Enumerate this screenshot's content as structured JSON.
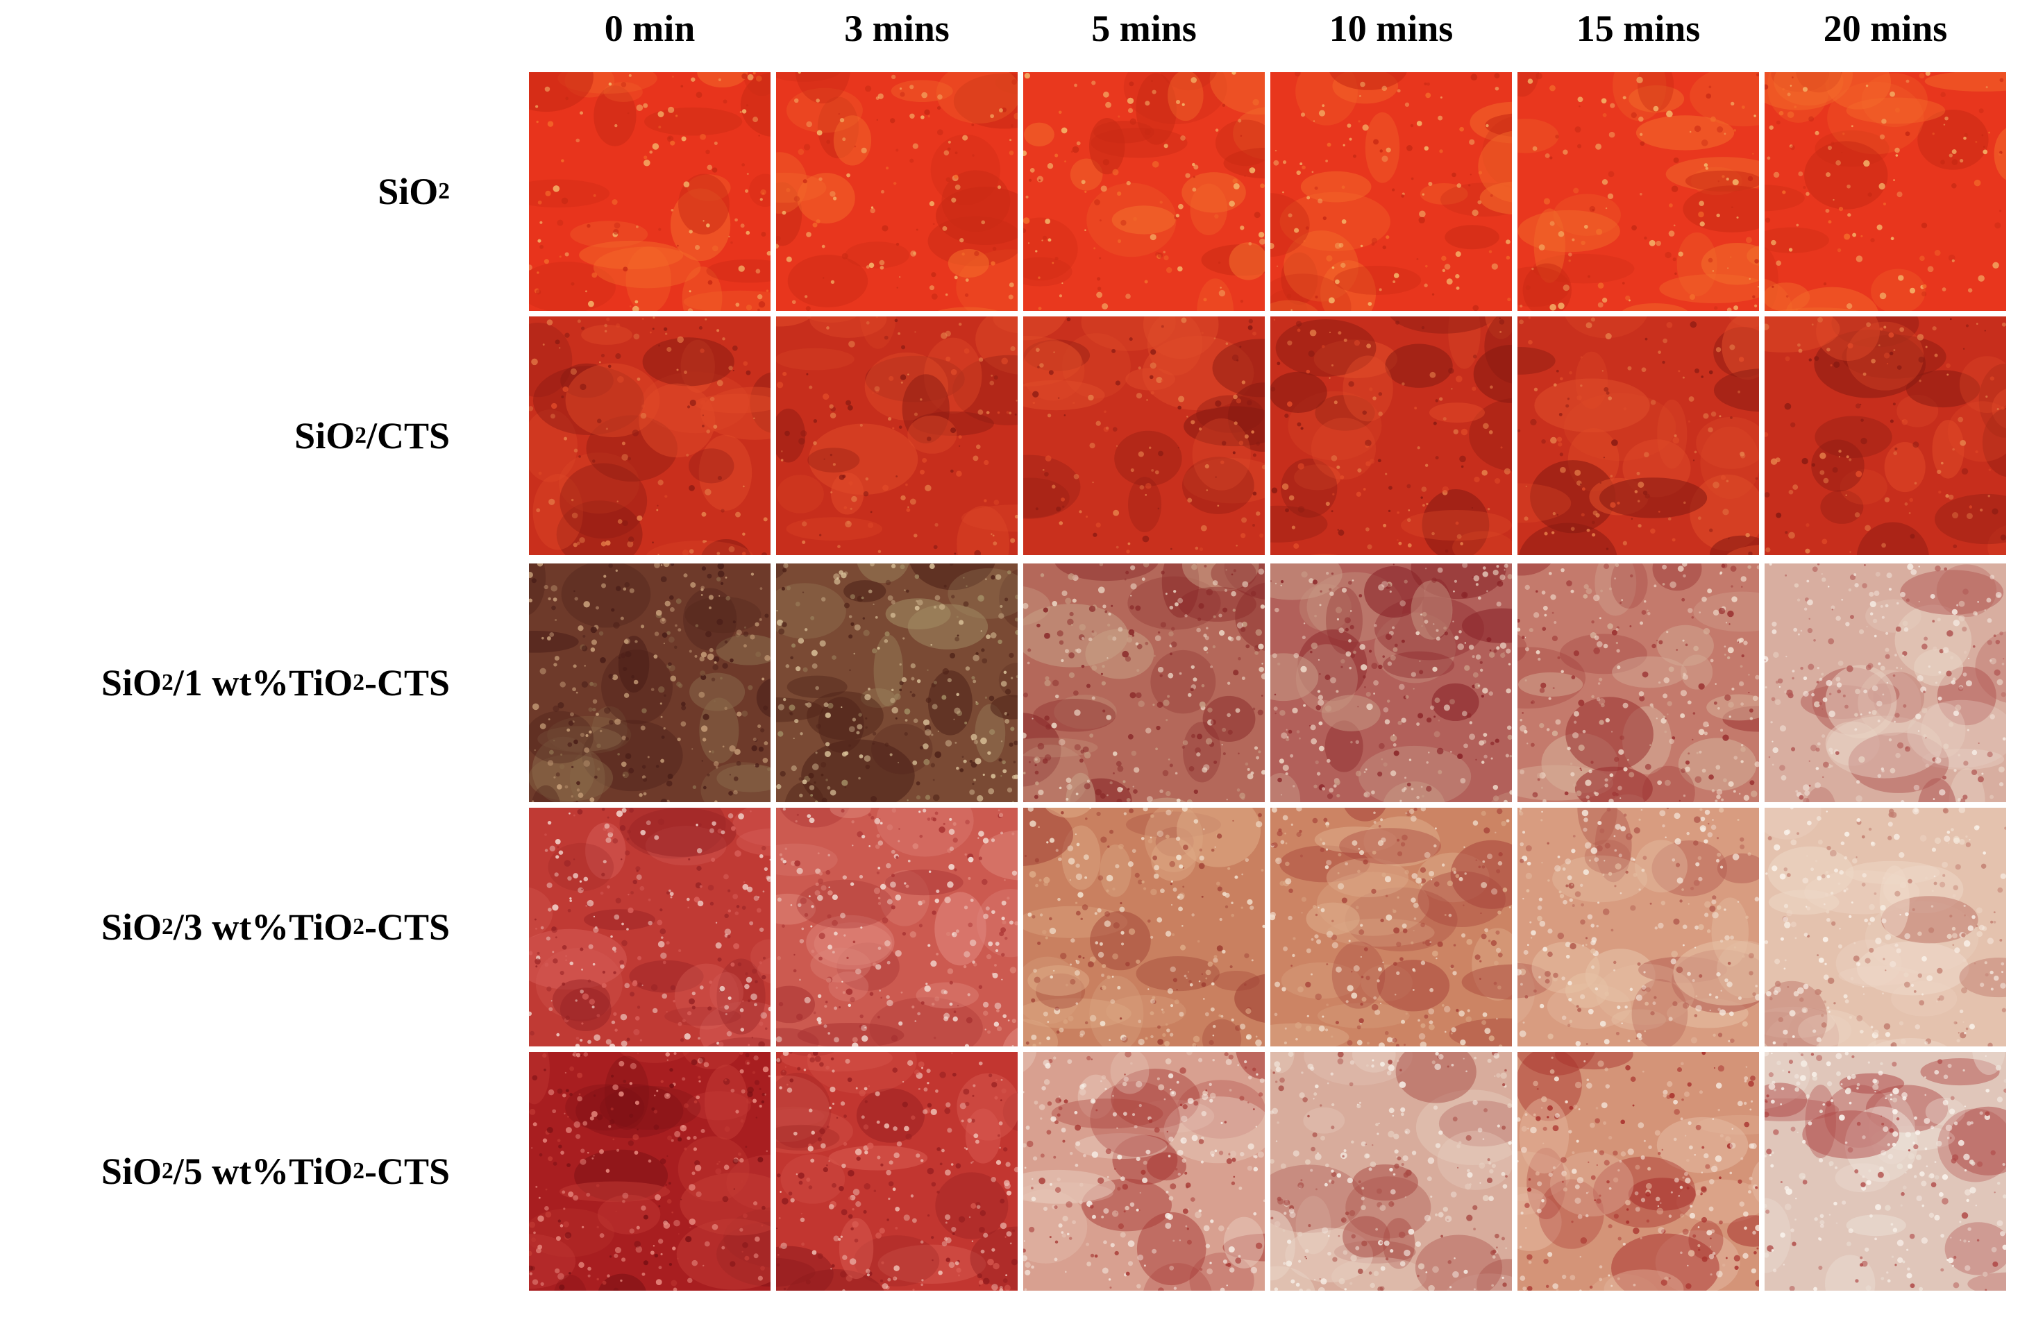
{
  "columns": [
    "0 min",
    "3 mins",
    "5 mins",
    "10 mins",
    "15 mins",
    "20 mins"
  ],
  "rows": [
    {
      "label": [
        {
          "t": "SiO"
        },
        {
          "t": "2",
          "sub": true
        }
      ],
      "cells": [
        {
          "base": "#e8341c",
          "spot1": "#f36a2a",
          "spot2": "#c92a14",
          "speck": "#f4b56a"
        },
        {
          "base": "#e8361d",
          "spot1": "#f36a2a",
          "spot2": "#c92a14",
          "speck": "#f4b56a"
        },
        {
          "base": "#e9381e",
          "spot1": "#f26c2b",
          "spot2": "#c92a14",
          "speck": "#f4b56a"
        },
        {
          "base": "#e8361d",
          "spot1": "#f36a2a",
          "spot2": "#c92a14",
          "speck": "#f4b56a"
        },
        {
          "base": "#e9371e",
          "spot1": "#f26c2b",
          "spot2": "#c92a14",
          "speck": "#f4b56a"
        },
        {
          "base": "#e8361d",
          "spot1": "#f36a2a",
          "spot2": "#c92a14",
          "speck": "#f4b56a"
        }
      ]
    },
    {
      "label": [
        {
          "t": "SiO"
        },
        {
          "t": "2",
          "sub": true
        },
        {
          "t": "/CTS"
        }
      ],
      "cells": [
        {
          "base": "#c92f1c",
          "spot1": "#e04a28",
          "spot2": "#8a1a12",
          "speck": "#e6804a"
        },
        {
          "base": "#c72e1c",
          "spot1": "#e04a28",
          "spot2": "#8a1a12",
          "speck": "#e6804a"
        },
        {
          "base": "#c9301d",
          "spot1": "#df4b29",
          "spot2": "#8a1a12",
          "speck": "#e6804a"
        },
        {
          "base": "#c72e1c",
          "spot1": "#e04a28",
          "spot2": "#8a1a12",
          "speck": "#e6804a"
        },
        {
          "base": "#c9301d",
          "spot1": "#df4b29",
          "spot2": "#8a1a12",
          "speck": "#e6804a"
        },
        {
          "base": "#c72e1c",
          "spot1": "#e04a28",
          "spot2": "#8a1a12",
          "speck": "#e6804a"
        }
      ]
    },
    {
      "label": [
        {
          "t": "SiO"
        },
        {
          "t": "2",
          "sub": true
        },
        {
          "t": "/1 wt%TiO"
        },
        {
          "t": "2",
          "sub": true
        },
        {
          "t": "-CTS"
        }
      ],
      "cells": [
        {
          "base": "#6e3a2a",
          "spot1": "#8a6a4a",
          "spot2": "#4a1e18",
          "speck": "#c8a07a"
        },
        {
          "base": "#7a4a34",
          "spot1": "#a08a62",
          "spot2": "#4e2218",
          "speck": "#d8c098"
        },
        {
          "base": "#b4685a",
          "spot1": "#c8a086",
          "spot2": "#8a2a2a",
          "speck": "#ecd8c6"
        },
        {
          "base": "#b2605a",
          "spot1": "#c89a86",
          "spot2": "#8a2428",
          "speck": "#ecd6c6"
        },
        {
          "base": "#c47a6c",
          "spot1": "#d6b09a",
          "spot2": "#9a3030",
          "speck": "#f0dccc"
        },
        {
          "base": "#d8aea0",
          "spot1": "#e8d2c4",
          "spot2": "#b25a56",
          "speck": "#f6ece4"
        }
      ]
    },
    {
      "label": [
        {
          "t": "SiO"
        },
        {
          "t": "2",
          "sub": true
        },
        {
          "t": "/3 wt%TiO"
        },
        {
          "t": "2",
          "sub": true
        },
        {
          "t": "-CTS"
        }
      ],
      "cells": [
        {
          "base": "#c03a34",
          "spot1": "#d8605a",
          "spot2": "#9a2426",
          "speck": "#f2d4cc"
        },
        {
          "base": "#cc5a50",
          "spot1": "#e08a7e",
          "spot2": "#a83232",
          "speck": "#f4e0d8"
        },
        {
          "base": "#c98060",
          "spot1": "#ddaa86",
          "spot2": "#a04034",
          "speck": "#f2e2d0"
        },
        {
          "base": "#cc8464",
          "spot1": "#dcaa88",
          "spot2": "#a8443a",
          "speck": "#f0dcca"
        },
        {
          "base": "#d89c80",
          "spot1": "#e6c2a6",
          "spot2": "#b25a4e",
          "speck": "#f6ebe0"
        },
        {
          "base": "#e4c2ae",
          "spot1": "#eed8c8",
          "spot2": "#c27e70",
          "speck": "#faf2ea"
        }
      ]
    },
    {
      "label": [
        {
          "t": "SiO"
        },
        {
          "t": "2",
          "sub": true
        },
        {
          "t": "/5 wt%TiO"
        },
        {
          "t": "2",
          "sub": true
        },
        {
          "t": "-CTS"
        }
      ],
      "cells": [
        {
          "base": "#a81e20",
          "spot1": "#c23a34",
          "spot2": "#7a1014",
          "speck": "#e88a80"
        },
        {
          "base": "#c23630",
          "spot1": "#d85a50",
          "spot2": "#921c1e",
          "speck": "#f0c0b4"
        },
        {
          "base": "#d8a090",
          "spot1": "#e8cabc",
          "spot2": "#a83a36",
          "speck": "#f6ece4"
        },
        {
          "base": "#d8ac9c",
          "spot1": "#e8d2c4",
          "spot2": "#a84a44",
          "speck": "#f6eee6"
        },
        {
          "base": "#d49478",
          "spot1": "#e4b8a0",
          "spot2": "#a8302c",
          "speck": "#f4e4d8"
        },
        {
          "base": "#e0c6ba",
          "spot1": "#ece0d6",
          "spot2": "#b04a48",
          "speck": "#faf4ee"
        }
      ]
    }
  ]
}
